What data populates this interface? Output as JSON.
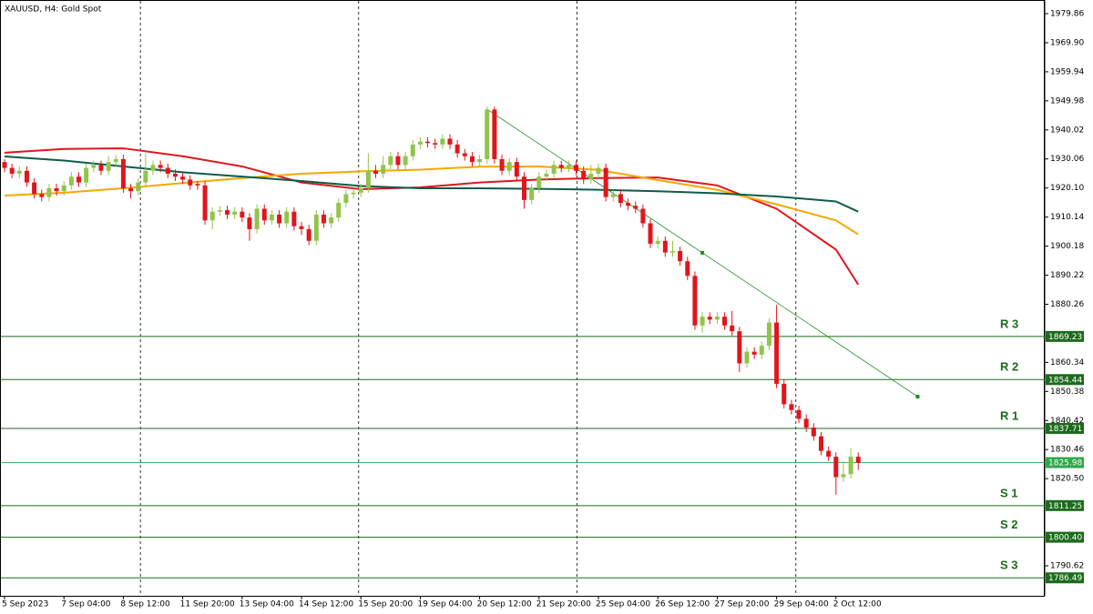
{
  "chart_data": {
    "type": "candlestick",
    "title": "XAUUSD, H4:  Gold Spot",
    "up_color": "#92c44c",
    "down_color": "#e0161c",
    "categories": [
      "5 Sep 2023",
      null,
      null,
      null,
      null,
      null,
      null,
      null,
      "7 Sep 04:00",
      null,
      null,
      null,
      null,
      null,
      null,
      null,
      "8 Sep 12:00",
      null,
      null,
      null,
      null,
      null,
      null,
      null,
      "11 Sep 20:00",
      null,
      null,
      null,
      null,
      null,
      null,
      null,
      "13 Sep 04:00",
      null,
      null,
      null,
      null,
      null,
      null,
      null,
      "14 Sep 12:00",
      null,
      null,
      null,
      null,
      null,
      null,
      null,
      "15 Sep 20:00",
      null,
      null,
      null,
      null,
      null,
      null,
      null,
      "19 Sep 04:00",
      null,
      null,
      null,
      null,
      null,
      null,
      null,
      "20 Sep 12:00",
      null,
      null,
      null,
      null,
      null,
      null,
      null,
      "21 Sep 20:00",
      null,
      null,
      null,
      null,
      null,
      null,
      null,
      "25 Sep 04:00",
      null,
      null,
      null,
      null,
      null,
      null,
      null,
      "26 Sep 12:00",
      null,
      null,
      null,
      null,
      null,
      null,
      null,
      "27 Sep 20:00",
      null,
      null,
      null,
      null,
      null,
      null,
      null,
      "29 Sep 04:00",
      null,
      null,
      null,
      null,
      null,
      null,
      null,
      "2 Oct 12:00",
      null,
      null,
      null
    ],
    "open": [
      1929,
      1927,
      1925,
      1926,
      1922,
      1918,
      1917,
      1920,
      1919,
      1921,
      1924,
      1922,
      1927,
      1928,
      1926,
      1929,
      1930,
      1920,
      1919,
      1922,
      1926,
      1928,
      1927,
      1925,
      1924,
      1923,
      1921.5,
      1921,
      1909,
      1912,
      1912.5,
      1911,
      1912,
      1910,
      1906,
      1913,
      1909,
      1911,
      1908,
      1912,
      1907,
      1906,
      1902,
      1911,
      1908,
      1910,
      1915,
      1918,
      1918.5,
      1920,
      1926,
      1925,
      1928,
      1931,
      1928,
      1931,
      1935,
      1936,
      1935.5,
      1935,
      1937,
      1935,
      1932,
      1931,
      1929,
      1930,
      1947,
      1930,
      1926,
      1929,
      1924,
      1916,
      1920,
      1924,
      1925,
      1928,
      1927,
      1928,
      1926,
      1923,
      1925,
      1927,
      1917,
      1918,
      1915,
      1914,
      1913,
      1908,
      1901,
      1902,
      1898,
      1898.5,
      1895,
      1890,
      1873,
      1876,
      1875,
      1876,
      1873,
      1871,
      1860,
      1864,
      1863,
      1866,
      1874,
      1853,
      1846,
      1844,
      1841,
      1838,
      1835,
      1830,
      1828,
      1821,
      1822,
      1828
    ],
    "high": [
      1930,
      1928.5,
      1927.5,
      1927.5,
      1923.5,
      1919.5,
      1921.5,
      1921.5,
      1922.5,
      1925.5,
      1925.5,
      1928.5,
      1929.5,
      1929.5,
      1931,
      1931.5,
      1931.5,
      1921.5,
      1923.5,
      1932,
      1929.5,
      1929.5,
      1928.5,
      1926.5,
      1925.5,
      1924.5,
      1922.5,
      1922.5,
      1913.5,
      1914,
      1914,
      1913.5,
      1913.5,
      1911.5,
      1914.5,
      1914.5,
      1912.5,
      1912.5,
      1913.5,
      1913.5,
      1908.5,
      1907.5,
      1912.5,
      1912.5,
      1911.5,
      1916.5,
      1919.5,
      1920,
      1921.5,
      1932,
      1928,
      1931,
      1932.5,
      1932.5,
      1932.5,
      1936.5,
      1937.5,
      1937.5,
      1937,
      1938.5,
      1938.5,
      1936.5,
      1933.5,
      1932.5,
      1931.5,
      1948,
      1948,
      1931.5,
      1930.5,
      1930.5,
      1925.5,
      1921.5,
      1925.5,
      1926.5,
      1929.5,
      1929.5,
      1929.5,
      1929.5,
      1927.5,
      1928,
      1928.5,
      1928.5,
      1919.5,
      1919.5,
      1916.5,
      1915.5,
      1914.5,
      1909.5,
      1903.5,
      1903.5,
      1902,
      1900,
      1896.5,
      1891.5,
      1877.5,
      1877.5,
      1877.5,
      1877.5,
      1878,
      1872.5,
      1865.5,
      1865.5,
      1867.5,
      1875.5,
      1880,
      1854.5,
      1847.5,
      1845.5,
      1842.5,
      1839.5,
      1836.5,
      1831.5,
      1829.5,
      1826.5,
      1831,
      1829.5
    ],
    "low": [
      1925.5,
      1923.5,
      1923.5,
      1920.5,
      1916.5,
      1915.5,
      1915.5,
      1917.5,
      1917.5,
      1919.5,
      1920.5,
      1920.5,
      1925.5,
      1924.5,
      1924.5,
      1927.5,
      1918.5,
      1916.5,
      1917.5,
      1920.5,
      1924.5,
      1925.5,
      1923.5,
      1922.5,
      1921.5,
      1919.5,
      1919.5,
      1907.5,
      1906,
      1910.5,
      1909.5,
      1909.5,
      1908.5,
      1902,
      1904.5,
      1907.5,
      1907.5,
      1906.5,
      1906.5,
      1905.5,
      1904,
      1900.5,
      1900.5,
      1906.5,
      1906.5,
      1908.5,
      1913.5,
      1916.5,
      1917,
      1918.5,
      1923.5,
      1923.5,
      1926.5,
      1926.5,
      1926.5,
      1929.5,
      1933.5,
      1934,
      1933.5,
      1933.5,
      1933.5,
      1930.5,
      1929.5,
      1927.5,
      1927.5,
      1928.5,
      1928.5,
      1924.5,
      1924.5,
      1922.5,
      1913,
      1914.5,
      1918.5,
      1922.5,
      1923.5,
      1925.5,
      1925.5,
      1924.5,
      1921.5,
      1921.5,
      1923.5,
      1915.5,
      1915.5,
      1913.5,
      1912.5,
      1911.5,
      1906.5,
      1899.5,
      1899.5,
      1896.5,
      1896.5,
      1893.5,
      1888.5,
      1871.5,
      1870.5,
      1873.5,
      1873.5,
      1871.5,
      1869.5,
      1857,
      1858.5,
      1861.5,
      1861.5,
      1864.5,
      1851.5,
      1844.5,
      1842.5,
      1839.5,
      1836.5,
      1833.5,
      1828.5,
      1826.5,
      1815,
      1819.5,
      1820.5,
      1823.5
    ],
    "close": [
      1927,
      1925,
      1926,
      1922,
      1918,
      1917,
      1920,
      1919,
      1921,
      1924,
      1922,
      1927,
      1928,
      1926,
      1929,
      1930,
      1920,
      1919,
      1922,
      1926,
      1928,
      1927,
      1925,
      1924,
      1923,
      1921,
      1921,
      1909,
      1912,
      1912.5,
      1911,
      1912,
      1910,
      1906,
      1913,
      1909,
      1911,
      1908,
      1912,
      1907,
      1906,
      1902,
      1911,
      1908,
      1910,
      1915,
      1918,
      1918.5,
      1920,
      1926,
      1925,
      1928,
      1931,
      1928,
      1931,
      1935,
      1936,
      1935.5,
      1935,
      1937,
      1935,
      1932,
      1931,
      1929,
      1930,
      1947,
      1930,
      1926,
      1929,
      1924,
      1916,
      1920,
      1924,
      1925,
      1928,
      1927,
      1928,
      1926,
      1923,
      1925,
      1927,
      1917,
      1918,
      1915,
      1914,
      1913,
      1908,
      1901,
      1902,
      1898,
      1898.5,
      1895,
      1890,
      1873,
      1876,
      1875,
      1876,
      1873,
      1871,
      1860,
      1864,
      1863,
      1866,
      1874,
      1853,
      1846,
      1844,
      1841,
      1838,
      1835,
      1830,
      1828,
      1821,
      1822,
      1828,
      1826
    ],
    "series": [
      {
        "color": "#e0161c",
        "x": [
          0,
          8,
          16,
          24,
          32,
          40,
          48,
          56,
          64,
          72,
          80,
          88,
          96,
          104,
          112,
          115
        ],
        "values": [
          1932.2,
          1933.5,
          1933.7,
          1931,
          1927.5,
          1922,
          1919.7,
          1920.3,
          1922,
          1923,
          1923.5,
          1923.7,
          1921,
          1913,
          1899,
          1887
        ]
      },
      {
        "color": "#f5a800",
        "x": [
          0,
          8,
          16,
          24,
          32,
          40,
          48,
          56,
          64,
          72,
          80,
          88,
          96,
          104,
          112,
          115
        ],
        "values": [
          1917.5,
          1918.5,
          1920,
          1921.8,
          1923.5,
          1925,
          1925.8,
          1926.4,
          1927.4,
          1927.5,
          1926.3,
          1922.8,
          1919.5,
          1914.5,
          1909,
          1904.2
        ]
      },
      {
        "color": "#0d5c4a",
        "x": [
          0,
          8,
          16,
          24,
          32,
          40,
          48,
          56,
          64,
          72,
          80,
          88,
          96,
          104,
          112,
          115
        ],
        "values": [
          1930.9,
          1929.5,
          1927.5,
          1925.5,
          1924,
          1922.5,
          1920.8,
          1920,
          1920,
          1919.8,
          1919.5,
          1919,
          1918.3,
          1917.2,
          1915.5,
          1912
        ]
      }
    ],
    "trendline": {
      "color": "#1e8c1e",
      "x": [
        65,
        94,
        123
      ],
      "values": [
        1947.1,
        1897.9,
        1848.6
      ]
    },
    "levels": [
      {
        "name": "R 3",
        "value": 1869.23
      },
      {
        "name": "R 2",
        "value": 1854.44
      },
      {
        "name": "R 1",
        "value": 1837.71
      },
      {
        "name": "S 1",
        "value": 1811.25
      },
      {
        "name": "S 2",
        "value": 1800.4,
        "value_label": "1800.40"
      },
      {
        "name": "S 3",
        "value": 1786.49
      }
    ],
    "level_color": "#1d6b1d",
    "last_price": 1825.98,
    "last_price_color": "#2ea84a",
    "ylim": [
      1780.33,
      1984.54
    ],
    "yticks": [
      1979.86,
      {
        "value": 1969.9,
        "label": "1969.90"
      },
      1959.94,
      1949.98,
      1940.02,
      1930.06,
      {
        "value": 1920.1,
        "label": "1920.10"
      },
      1910.14,
      1900.18,
      1890.22,
      1880.26,
      1860.34,
      1850.38,
      1840.42,
      1830.46,
      {
        "value": 1820.5,
        "label": "1820.50"
      },
      1790.62
    ]
  }
}
